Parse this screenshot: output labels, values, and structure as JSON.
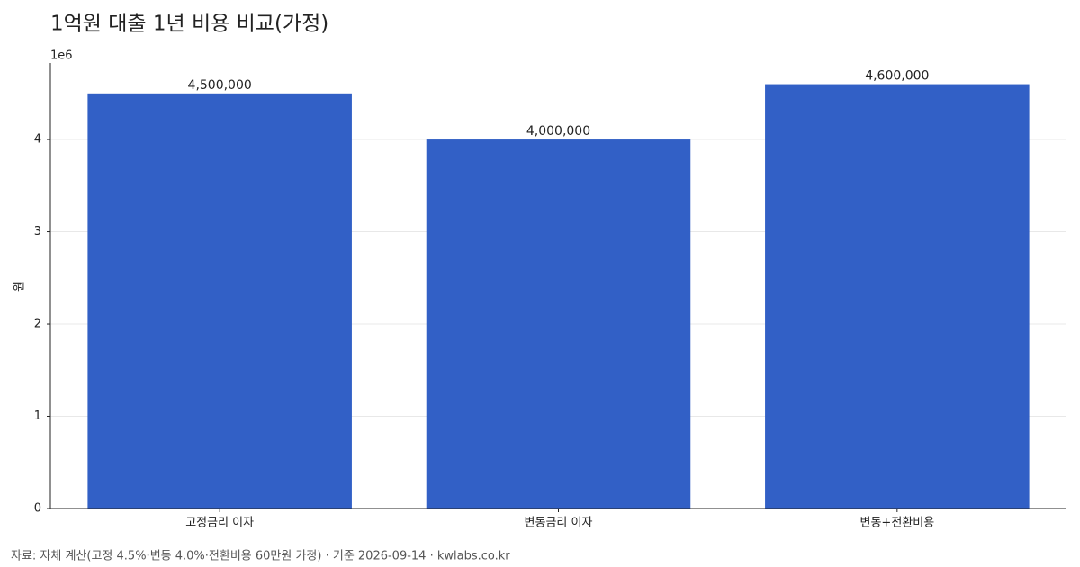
{
  "chart_data": {
    "type": "bar",
    "title": "1억원 대출 1년 비용 비교(가정)",
    "y_label": "원",
    "y_offset_label": "1e6",
    "categories": [
      "고정금리 이자",
      "변동금리 이자",
      "변동+전환비용"
    ],
    "values": [
      4500000,
      4000000,
      4600000
    ],
    "value_labels": [
      "4,500,000",
      "4,000,000",
      "4,600,000"
    ],
    "color": "#3260c6",
    "ylim": [
      0,
      4830000
    ],
    "yticks": [
      0,
      {
        "value": 1000000,
        "label": "1"
      },
      {
        "value": 2000000,
        "label": "2"
      },
      {
        "value": 3000000,
        "label": "3"
      },
      {
        "value": 4000000,
        "label": "4"
      }
    ],
    "grid": true,
    "source": "자료: 자체 계산(고정 4.5%·변동 4.0%·전환비용 60만원 가정) · 기준 2026-09-14 · kwlabs.co.kr"
  }
}
